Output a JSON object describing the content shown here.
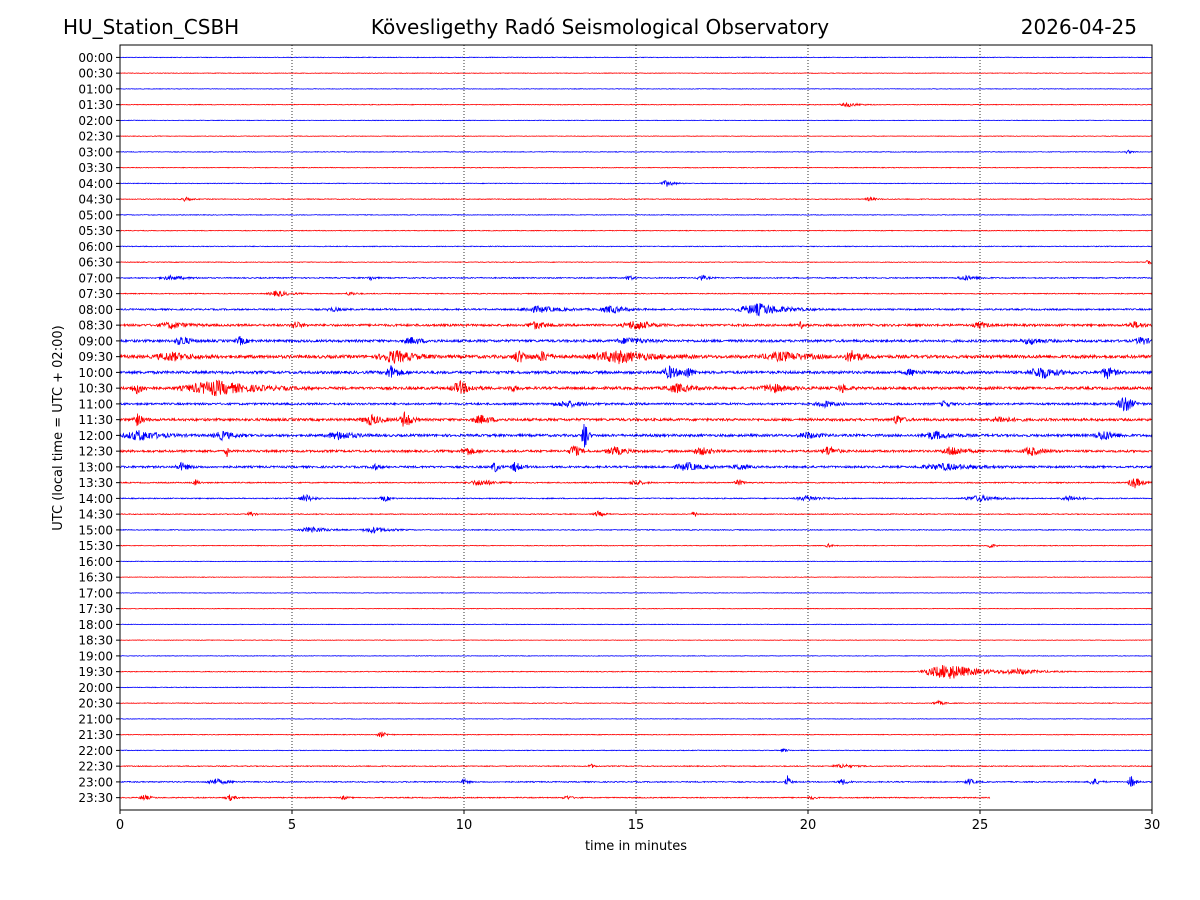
{
  "header": {
    "station": "HU_Station_CSBH",
    "title": "Kövesligethy Radó Seismological Observatory",
    "date": "2026-04-25"
  },
  "chart_data": {
    "type": "line",
    "title": "Kövesligethy Radó Seismological Observatory",
    "xlabel": "time in minutes",
    "ylabel": "UTC (local time = UTC + 02:00)",
    "xlim": [
      0,
      30
    ],
    "x_ticks": [
      0,
      5,
      10,
      15,
      20,
      25,
      30
    ],
    "grid": "vertical dotted at 5-minute ticks",
    "colors": {
      "even_rows": "#0000ff",
      "odd_rows": "#ff0000"
    },
    "last_trace_end_minute": 25.3,
    "rows": [
      {
        "label": "00:00",
        "noise": 0.6,
        "bursts": []
      },
      {
        "label": "00:30",
        "noise": 0.5,
        "bursts": []
      },
      {
        "label": "01:00",
        "noise": 0.5,
        "bursts": []
      },
      {
        "label": "01:30",
        "noise": 0.6,
        "bursts": [
          [
            21.2,
            0.6,
            2
          ]
        ]
      },
      {
        "label": "02:00",
        "noise": 0.5,
        "bursts": []
      },
      {
        "label": "02:30",
        "noise": 0.5,
        "bursts": []
      },
      {
        "label": "03:00",
        "noise": 0.6,
        "bursts": [
          [
            29.3,
            0.2,
            2
          ]
        ]
      },
      {
        "label": "03:30",
        "noise": 0.6,
        "bursts": []
      },
      {
        "label": "04:00",
        "noise": 0.6,
        "bursts": [
          [
            15.9,
            0.4,
            3
          ]
        ]
      },
      {
        "label": "04:30",
        "noise": 0.7,
        "bursts": [
          [
            1.9,
            0.3,
            2
          ],
          [
            21.8,
            0.3,
            2
          ]
        ]
      },
      {
        "label": "05:00",
        "noise": 0.6,
        "bursts": []
      },
      {
        "label": "05:30",
        "noise": 0.6,
        "bursts": []
      },
      {
        "label": "06:00",
        "noise": 0.7,
        "bursts": []
      },
      {
        "label": "06:30",
        "noise": 0.6,
        "bursts": [
          [
            29.9,
            0.2,
            3
          ]
        ]
      },
      {
        "label": "07:00",
        "noise": 1.0,
        "bursts": [
          [
            1.5,
            0.8,
            2
          ],
          [
            7.3,
            0.2,
            2.5
          ],
          [
            14.8,
            0.2,
            3
          ],
          [
            16.9,
            0.3,
            3
          ],
          [
            24.6,
            0.6,
            2.5
          ]
        ]
      },
      {
        "label": "07:30",
        "noise": 0.8,
        "bursts": [
          [
            4.6,
            0.6,
            3
          ],
          [
            6.7,
            0.3,
            2
          ]
        ]
      },
      {
        "label": "08:00",
        "noise": 1.4,
        "bursts": [
          [
            12.2,
            1.2,
            3
          ],
          [
            14.3,
            0.8,
            3.5
          ],
          [
            18.6,
            1.4,
            6
          ],
          [
            6.2,
            0.4,
            2
          ]
        ]
      },
      {
        "label": "08:30",
        "noise": 2.0,
        "bursts": [
          [
            1.5,
            0.8,
            3
          ],
          [
            5.1,
            0.3,
            4
          ],
          [
            12.1,
            0.6,
            3.5
          ],
          [
            15.0,
            0.8,
            4.5
          ],
          [
            19.8,
            0.2,
            3
          ],
          [
            25.0,
            0.4,
            3
          ],
          [
            29.5,
            0.5,
            3
          ]
        ]
      },
      {
        "label": "09:00",
        "noise": 2.2,
        "bursts": [
          [
            1.8,
            0.4,
            5
          ],
          [
            3.5,
            0.3,
            4
          ],
          [
            8.5,
            0.6,
            3
          ],
          [
            14.8,
            0.8,
            3
          ],
          [
            26.5,
            0.6,
            3
          ],
          [
            29.7,
            0.4,
            4
          ]
        ]
      },
      {
        "label": "09:30",
        "noise": 2.8,
        "bursts": [
          [
            1.5,
            1.0,
            4
          ],
          [
            8.0,
            1.0,
            6
          ],
          [
            11.6,
            0.4,
            6
          ],
          [
            12.3,
            0.4,
            5
          ],
          [
            14.5,
            1.6,
            6
          ],
          [
            19.3,
            1.4,
            4
          ],
          [
            21.3,
            0.5,
            6
          ]
        ]
      },
      {
        "label": "10:00",
        "noise": 2.4,
        "bursts": [
          [
            7.9,
            0.4,
            7
          ],
          [
            16.0,
            0.5,
            6
          ],
          [
            16.5,
            0.3,
            5
          ],
          [
            26.8,
            0.8,
            6
          ],
          [
            28.7,
            0.4,
            6
          ],
          [
            23.0,
            0.4,
            3
          ]
        ]
      },
      {
        "label": "10:30",
        "noise": 2.4,
        "bursts": [
          [
            0.5,
            0.4,
            5
          ],
          [
            2.8,
            2.0,
            7
          ],
          [
            9.9,
            0.6,
            6
          ],
          [
            11.4,
            0.3,
            3
          ],
          [
            16.2,
            0.8,
            4
          ],
          [
            19.0,
            0.8,
            4
          ],
          [
            21.0,
            0.3,
            4
          ]
        ]
      },
      {
        "label": "11:00",
        "noise": 1.8,
        "bursts": [
          [
            13.0,
            0.8,
            3
          ],
          [
            20.5,
            0.6,
            3
          ],
          [
            24.0,
            0.3,
            3.5
          ],
          [
            29.2,
            0.4,
            10
          ]
        ]
      },
      {
        "label": "11:30",
        "noise": 2.2,
        "bursts": [
          [
            0.5,
            0.3,
            6
          ],
          [
            7.3,
            0.6,
            5
          ],
          [
            8.3,
            0.3,
            10
          ],
          [
            10.5,
            0.6,
            4
          ],
          [
            22.6,
            0.3,
            5
          ],
          [
            25.6,
            0.6,
            3
          ]
        ]
      },
      {
        "label": "12:00",
        "noise": 2.2,
        "bursts": [
          [
            0.6,
            1.0,
            5
          ],
          [
            3.0,
            0.6,
            4
          ],
          [
            6.4,
            0.8,
            4
          ],
          [
            13.5,
            0.15,
            22
          ],
          [
            20.0,
            0.6,
            3
          ],
          [
            23.7,
            0.8,
            4
          ],
          [
            28.6,
            0.6,
            5
          ]
        ]
      },
      {
        "label": "12:30",
        "noise": 2.0,
        "bursts": [
          [
            3.1,
            0.1,
            6
          ],
          [
            10.1,
            0.4,
            4
          ],
          [
            13.2,
            0.3,
            7
          ],
          [
            14.4,
            0.6,
            4
          ],
          [
            16.9,
            0.6,
            3.5
          ],
          [
            20.6,
            0.4,
            5
          ],
          [
            24.2,
            0.6,
            5
          ],
          [
            26.5,
            0.6,
            4
          ]
        ]
      },
      {
        "label": "13:00",
        "noise": 1.8,
        "bursts": [
          [
            1.8,
            0.4,
            4
          ],
          [
            7.4,
            0.3,
            3
          ],
          [
            10.9,
            0.2,
            6
          ],
          [
            11.5,
            0.3,
            5
          ],
          [
            16.5,
            0.8,
            4
          ],
          [
            18.0,
            0.4,
            3
          ],
          [
            24.0,
            1.6,
            3
          ]
        ]
      },
      {
        "label": "13:30",
        "noise": 1.0,
        "bursts": [
          [
            2.2,
            0.2,
            3
          ],
          [
            10.5,
            0.8,
            3
          ],
          [
            15.0,
            0.4,
            3
          ],
          [
            18.0,
            0.3,
            3
          ],
          [
            29.5,
            0.4,
            6
          ]
        ]
      },
      {
        "label": "14:00",
        "noise": 0.9,
        "bursts": [
          [
            5.4,
            0.4,
            4
          ],
          [
            7.7,
            0.3,
            3
          ],
          [
            20.0,
            0.8,
            2.5
          ],
          [
            25.0,
            1.0,
            3
          ],
          [
            27.6,
            0.6,
            3
          ]
        ]
      },
      {
        "label": "14:30",
        "noise": 0.8,
        "bursts": [
          [
            3.8,
            0.2,
            3
          ],
          [
            13.9,
            0.3,
            3
          ],
          [
            16.7,
            0.2,
            3
          ]
        ]
      },
      {
        "label": "15:00",
        "noise": 0.8,
        "bursts": [
          [
            5.6,
            0.8,
            3
          ],
          [
            7.4,
            0.8,
            3
          ]
        ]
      },
      {
        "label": "15:30",
        "noise": 0.6,
        "bursts": [
          [
            20.6,
            0.2,
            2
          ],
          [
            25.3,
            0.2,
            3
          ]
        ]
      },
      {
        "label": "16:00",
        "noise": 0.5,
        "bursts": []
      },
      {
        "label": "16:30",
        "noise": 0.5,
        "bursts": []
      },
      {
        "label": "17:00",
        "noise": 0.5,
        "bursts": []
      },
      {
        "label": "17:30",
        "noise": 0.5,
        "bursts": []
      },
      {
        "label": "18:00",
        "noise": 0.5,
        "bursts": []
      },
      {
        "label": "18:30",
        "noise": 0.5,
        "bursts": []
      },
      {
        "label": "19:00",
        "noise": 0.5,
        "bursts": []
      },
      {
        "label": "19:30",
        "noise": 0.7,
        "bursts": [
          [
            24.1,
            1.6,
            8
          ],
          [
            26.2,
            1.2,
            2.5
          ]
        ]
      },
      {
        "label": "20:00",
        "noise": 0.6,
        "bursts": []
      },
      {
        "label": "20:30",
        "noise": 0.6,
        "bursts": [
          [
            23.8,
            0.4,
            2
          ]
        ]
      },
      {
        "label": "21:00",
        "noise": 0.5,
        "bursts": []
      },
      {
        "label": "21:30",
        "noise": 0.6,
        "bursts": [
          [
            7.6,
            0.3,
            3
          ]
        ]
      },
      {
        "label": "22:00",
        "noise": 0.6,
        "bursts": [
          [
            19.3,
            0.2,
            2
          ]
        ]
      },
      {
        "label": "22:30",
        "noise": 0.8,
        "bursts": [
          [
            13.7,
            0.2,
            2
          ],
          [
            21.0,
            0.6,
            2
          ]
        ]
      },
      {
        "label": "23:00",
        "noise": 1.0,
        "bursts": [
          [
            2.8,
            0.6,
            3
          ],
          [
            10.0,
            0.2,
            3
          ],
          [
            19.4,
            0.15,
            7
          ],
          [
            21.0,
            0.3,
            3
          ],
          [
            24.7,
            0.3,
            3
          ],
          [
            28.3,
            0.3,
            4
          ],
          [
            29.4,
            0.2,
            7
          ]
        ]
      },
      {
        "label": "23:30",
        "noise": 0.9,
        "bursts": [
          [
            0.7,
            0.3,
            3
          ],
          [
            3.2,
            0.3,
            3
          ],
          [
            6.5,
            0.2,
            2
          ],
          [
            13.0,
            0.3,
            2
          ],
          [
            20.1,
            0.2,
            2
          ]
        ]
      }
    ]
  }
}
